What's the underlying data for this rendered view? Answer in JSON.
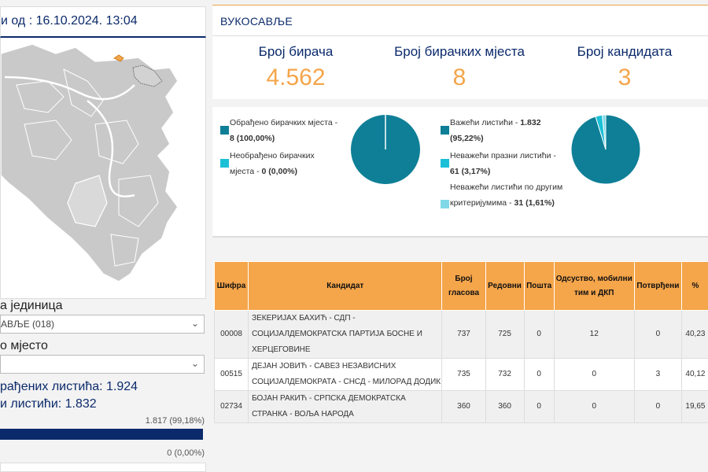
{
  "left": {
    "updated_label": "и од : 16.10.2024. 13:04",
    "unit_label": "а јединица",
    "unit_select_value": "АВЉЕ (018)",
    "station_label": "о мјесто",
    "station_select_value": "",
    "processed_ballots": "рађених листића: 1.924",
    "valid_ballots": "и листићи: 1.832",
    "bar1_text": "1.817 (99,18%)",
    "bar1_fraction": 0.9918,
    "bar2_text": "0 (0,00%)"
  },
  "header": {
    "title": "ВУКОСАВЉЕ"
  },
  "counters": [
    {
      "label": "Број бирача",
      "value": "4.562"
    },
    {
      "label": "Број бирачких мјеста",
      "value": "8"
    },
    {
      "label": "Број кандидата",
      "value": "3"
    }
  ],
  "pie1": {
    "items": [
      {
        "text": "Обрађено бирачких мјеста - ",
        "bold": "8 (100,00%)",
        "color": "#0e7f97"
      },
      {
        "text": "Необрађено бирачких мјеста - ",
        "bold": "0 (0,00%)",
        "color": "#1cc0d6"
      }
    ],
    "fractions": [
      1.0,
      0.0
    ]
  },
  "pie2": {
    "items": [
      {
        "text": "Важећи листићи - ",
        "bold": "1.832 (95,22%)",
        "color": "#0e7f97"
      },
      {
        "text": "Неважећи празни листићи - ",
        "bold": "61 (3,17%)",
        "color": "#1cc0d6"
      },
      {
        "text": "Неважећи листићи по другим критеријумима - ",
        "bold": "31 (1,61%)",
        "color": "#7fd8e6"
      }
    ],
    "fractions": [
      0.9522,
      0.0317,
      0.0161
    ]
  },
  "table": {
    "headers": [
      "Шифра",
      "Кандидат",
      "Број гласова",
      "Редовни",
      "Пошта",
      "Одсуство, мобилни тим и ДКП",
      "Потврђени",
      "%"
    ],
    "rows": [
      [
        "00008",
        "ЗЕКЕРИЈАХ БАХИЋ - СДП - СОЦИЈАЛДЕМОКРАТСКА ПАРТИЈА БОСНЕ И ХЕРЦЕГОВИНЕ",
        "737",
        "725",
        "0",
        "12",
        "0",
        "40,23"
      ],
      [
        "00515",
        "ДЕЈАН ЈОВИЋ - САВЕЗ НЕЗАВИСНИХ СОЦИЈАЛДЕМОКРАТА - СНСД - МИЛОРАД ДОДИК",
        "735",
        "732",
        "0",
        "0",
        "3",
        "40,12"
      ],
      [
        "02734",
        "БОЈАН РАКИЋ - СРПСКА ДЕМОКРАТСКА СТРАНКА - ВОЉА НАРОДА",
        "360",
        "360",
        "0",
        "0",
        "0",
        "19,65"
      ]
    ]
  }
}
